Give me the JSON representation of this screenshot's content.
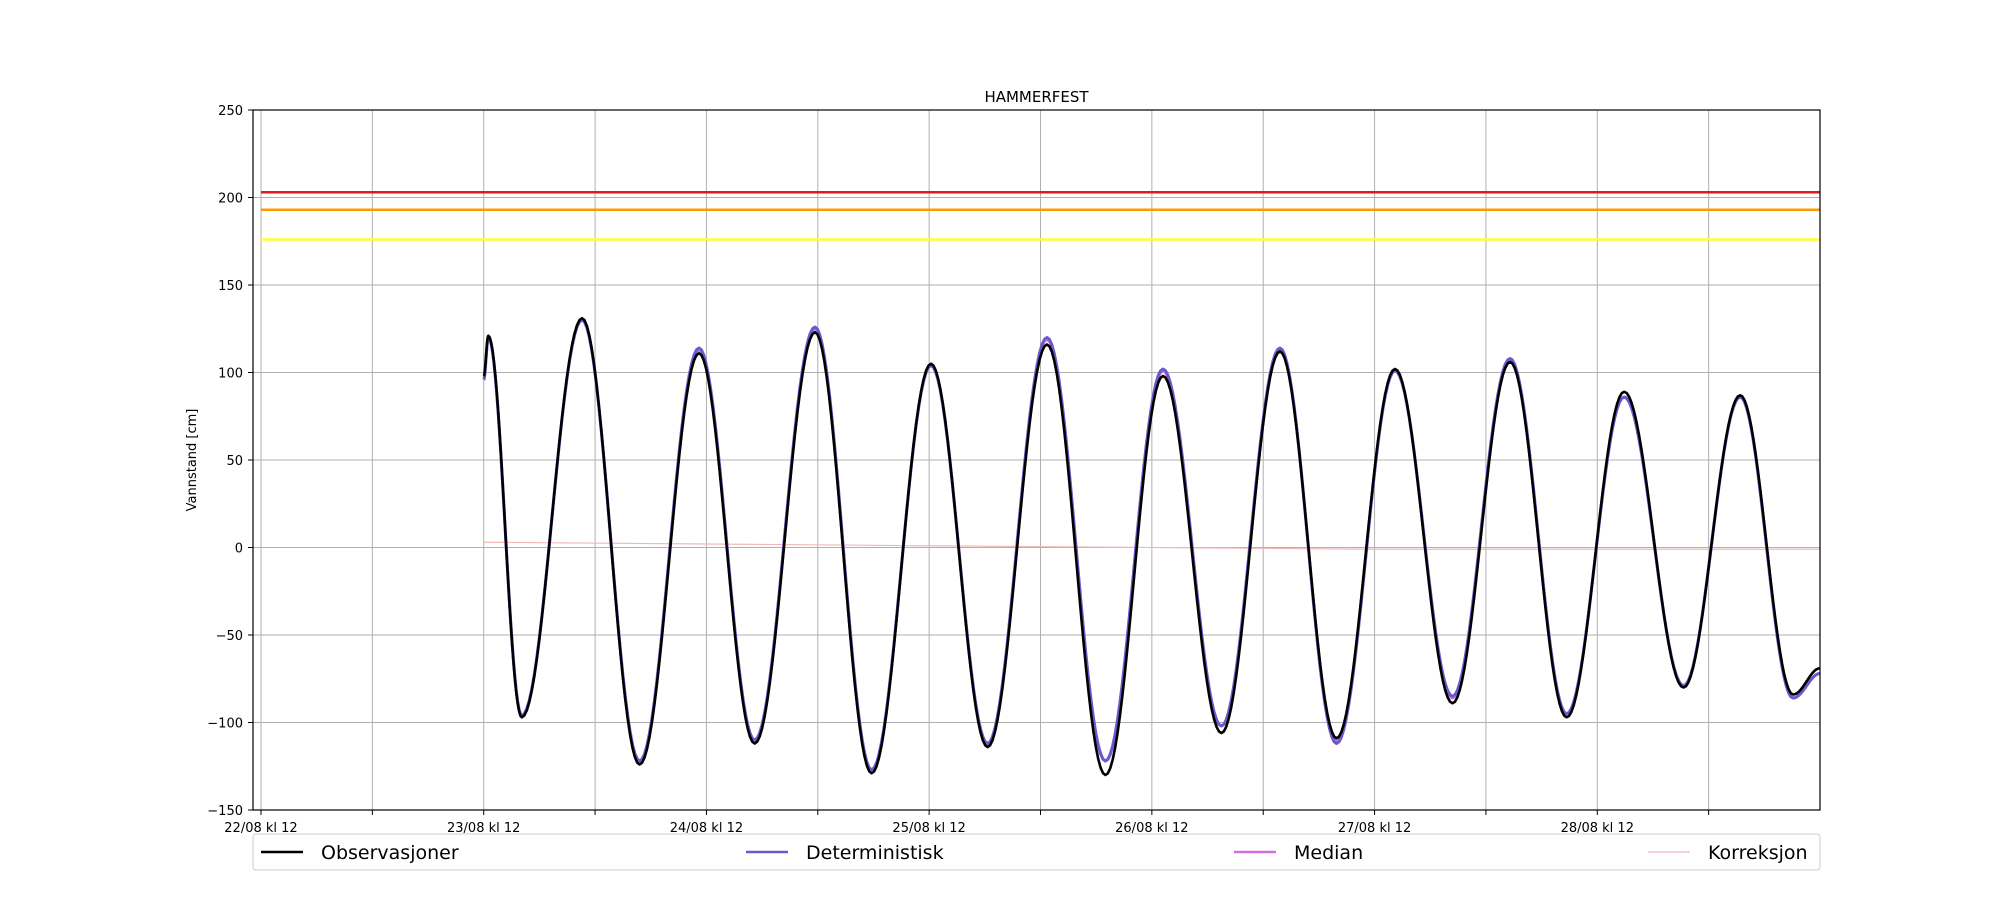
{
  "chart_data": {
    "type": "line",
    "title": "HAMMERFEST",
    "xlabel": "",
    "ylabel": "Vannstand [cm]",
    "ylim": [
      -150,
      250
    ],
    "yticks": [
      -150,
      -100,
      -50,
      0,
      50,
      100,
      150,
      200,
      250
    ],
    "xlim_hours_label_ref": "22/08 kl 12",
    "xticks": [
      {
        "h": 0,
        "label": "22/08 kl 12"
      },
      {
        "h": 12,
        "label": ""
      },
      {
        "h": 24,
        "label": "23/08 kl 12"
      },
      {
        "h": 36,
        "label": ""
      },
      {
        "h": 48,
        "label": "24/08 kl 12"
      },
      {
        "h": 60,
        "label": ""
      },
      {
        "h": 72,
        "label": "25/08 kl 12"
      },
      {
        "h": 84,
        "label": ""
      },
      {
        "h": 96,
        "label": "26/08 kl 12"
      },
      {
        "h": 108,
        "label": ""
      },
      {
        "h": 120,
        "label": "27/08 kl 12"
      },
      {
        "h": 132,
        "label": ""
      },
      {
        "h": 144,
        "label": "28/08 kl 12"
      },
      {
        "h": 156,
        "label": ""
      }
    ],
    "grid": true,
    "legend_placement": "bottom",
    "thresholds": [
      {
        "value": 203,
        "color": "#e31a1c"
      },
      {
        "value": 193,
        "color": "#ff9900"
      },
      {
        "value": 176,
        "color": "#ffff33"
      }
    ],
    "series": [
      {
        "name": "Observasjoner",
        "color": "#000000",
        "extrema": [
          [
            24,
            98
          ],
          [
            24.5,
            121
          ],
          [
            28.1,
            -97
          ],
          [
            34.6,
            131
          ],
          [
            40.8,
            -124
          ],
          [
            47.2,
            111
          ],
          [
            53.2,
            -112
          ],
          [
            59.7,
            123
          ],
          [
            65.8,
            -129
          ],
          [
            72.2,
            105
          ],
          [
            78.3,
            -114
          ],
          [
            84.7,
            116
          ],
          [
            91,
            -130
          ],
          [
            97.2,
            98
          ],
          [
            103.5,
            -106
          ],
          [
            109.8,
            112
          ],
          [
            115.9,
            -109
          ],
          [
            122.2,
            102
          ],
          [
            128.4,
            -89
          ],
          [
            134.6,
            106
          ],
          [
            140.7,
            -97
          ],
          [
            146.9,
            89
          ],
          [
            153.3,
            -80
          ],
          [
            159.4,
            87
          ],
          [
            165.1,
            -84
          ],
          [
            168.0,
            -69
          ]
        ]
      },
      {
        "name": "Deterministisk",
        "color": "#6a5acd",
        "extrema": [
          [
            24,
            96
          ],
          [
            24.5,
            120
          ],
          [
            28.1,
            -96
          ],
          [
            34.6,
            130
          ],
          [
            40.8,
            -122
          ],
          [
            47.2,
            114
          ],
          [
            53.2,
            -110
          ],
          [
            59.7,
            126
          ],
          [
            65.8,
            -127
          ],
          [
            72.2,
            104
          ],
          [
            78.3,
            -112
          ],
          [
            84.7,
            120
          ],
          [
            91,
            -122
          ],
          [
            97.2,
            102
          ],
          [
            103.5,
            -102
          ],
          [
            109.8,
            114
          ],
          [
            115.9,
            -112
          ],
          [
            122.2,
            101
          ],
          [
            128.4,
            -85
          ],
          [
            134.6,
            108
          ],
          [
            140.7,
            -95
          ],
          [
            146.9,
            86
          ],
          [
            153.3,
            -79
          ],
          [
            159.4,
            86
          ],
          [
            165.1,
            -86
          ],
          [
            168.0,
            -72
          ]
        ]
      },
      {
        "name": "Median",
        "color": "#d070e0",
        "extrema": [
          [
            24,
            96
          ],
          [
            24.5,
            120
          ],
          [
            28.1,
            -96
          ],
          [
            34.6,
            130
          ],
          [
            40.8,
            -122
          ],
          [
            47.2,
            113
          ],
          [
            53.2,
            -110
          ],
          [
            59.7,
            125
          ],
          [
            65.8,
            -127
          ],
          [
            72.2,
            104
          ],
          [
            78.3,
            -112
          ],
          [
            84.7,
            119
          ],
          [
            91,
            -122
          ],
          [
            97.2,
            101
          ],
          [
            103.5,
            -102
          ],
          [
            109.8,
            113
          ],
          [
            115.9,
            -111
          ],
          [
            122.2,
            101
          ],
          [
            128.4,
            -86
          ],
          [
            134.6,
            107
          ],
          [
            140.7,
            -95
          ],
          [
            146.9,
            86
          ],
          [
            153.3,
            -79
          ],
          [
            159.4,
            86
          ],
          [
            165.1,
            -86
          ],
          [
            168.0,
            -72
          ]
        ]
      },
      {
        "name": "Korreksjon",
        "color": "#f0b8b8",
        "points": [
          [
            24,
            3
          ],
          [
            48,
            2
          ],
          [
            72,
            1
          ],
          [
            96,
            0
          ],
          [
            120,
            -1
          ],
          [
            144,
            -1
          ],
          [
            168,
            -1
          ]
        ]
      }
    ]
  }
}
